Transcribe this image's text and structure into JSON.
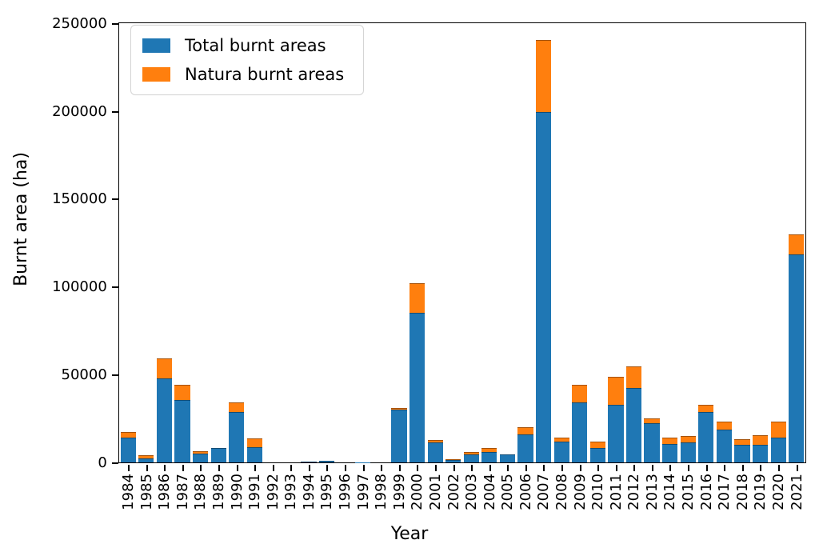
{
  "chart_data": {
    "type": "bar",
    "stacked": true,
    "title": "",
    "xlabel": "Year",
    "ylabel": "Burnt area (ha)",
    "ylim": [
      0,
      250000
    ],
    "yticks": [
      0,
      50000,
      100000,
      150000,
      200000,
      250000
    ],
    "grid": false,
    "legend_position": "upper left",
    "categories": [
      "1984",
      "1985",
      "1986",
      "1987",
      "1988",
      "1989",
      "1990",
      "1991",
      "1992",
      "1993",
      "1994",
      "1995",
      "1996",
      "1997",
      "1998",
      "1999",
      "2000",
      "2001",
      "2002",
      "2003",
      "2004",
      "2005",
      "2006",
      "2007",
      "2008",
      "2009",
      "2010",
      "2011",
      "2012",
      "2013",
      "2014",
      "2015",
      "2016",
      "2017",
      "2018",
      "2019",
      "2020",
      "2021"
    ],
    "series": [
      {
        "name": "Total burnt areas",
        "color": "#1f77b4",
        "values": [
          14000,
          2100,
          48000,
          35400,
          4800,
          8000,
          28700,
          8500,
          0,
          0,
          300,
          700,
          0,
          200,
          0,
          30000,
          85000,
          11500,
          1500,
          4400,
          5800,
          4400,
          16000,
          199500,
          12000,
          34000,
          8000,
          33000,
          42300,
          22200,
          10300,
          11500,
          28700,
          18700,
          10000,
          10000,
          14100,
          118500
        ]
      },
      {
        "name": "Natura burnt areas",
        "color": "#ff7f0e",
        "values": [
          3500,
          2100,
          11000,
          8800,
          1400,
          0,
          5600,
          5000,
          0,
          0,
          0,
          0,
          0,
          0,
          0,
          1000,
          17000,
          1300,
          500,
          1400,
          2400,
          0,
          4000,
          41000,
          2200,
          10200,
          3800,
          15700,
          12500,
          2700,
          3800,
          3400,
          4100,
          4500,
          3100,
          5300,
          9300,
          11500
        ]
      }
    ]
  },
  "figure": {
    "ylabel": "Burnt area (ha)",
    "xlabel": "Year"
  }
}
